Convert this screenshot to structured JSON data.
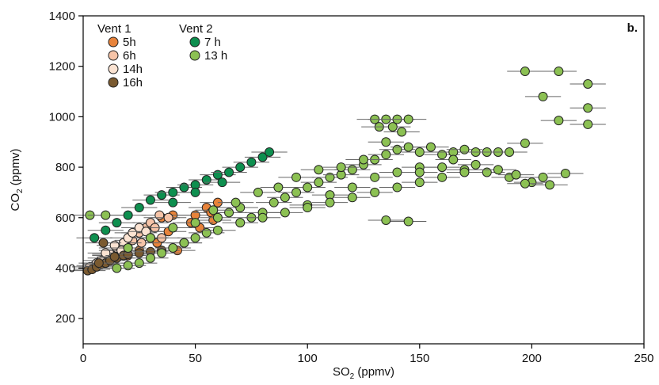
{
  "chart_data": {
    "type": "scatter",
    "panel_label": "b.",
    "xlabel_main": "SO",
    "xlabel_sub": "2",
    "xlabel_unit": " (ppmv)",
    "ylabel_main": "CO",
    "ylabel_sub": "2",
    "ylabel_unit": " (ppmv)",
    "xlim": [
      0,
      250
    ],
    "ylim": [
      100,
      1400
    ],
    "x_ticks": [
      0,
      50,
      100,
      150,
      200,
      250
    ],
    "x_tick_labels": [
      "0",
      "50",
      "100",
      "150",
      "200",
      "250"
    ],
    "y_ticks": [
      200,
      400,
      600,
      800,
      1000,
      1200,
      1400
    ],
    "y_tick_labels": [
      "200",
      "400",
      "600",
      "800",
      "1000",
      "1200",
      "1400"
    ],
    "grid": false,
    "error_bars": true,
    "legend": {
      "placement": "top-left",
      "groups": [
        {
          "title": "Vent 1",
          "entries": [
            "5h",
            "6h",
            "14h",
            "16h"
          ]
        },
        {
          "title": "Vent 2",
          "entries": [
            "7 h",
            "13 h"
          ]
        }
      ]
    },
    "series": [
      {
        "name": "5h",
        "color": "#e8833a",
        "points": [
          [
            45,
            500
          ],
          [
            42,
            470
          ],
          [
            38,
            545
          ],
          [
            48,
            580
          ],
          [
            50,
            610
          ],
          [
            52,
            560
          ],
          [
            55,
            640
          ],
          [
            57,
            620
          ],
          [
            60,
            660
          ],
          [
            30,
            520
          ],
          [
            33,
            500
          ],
          [
            25,
            470
          ],
          [
            20,
            450
          ],
          [
            35,
            600
          ],
          [
            40,
            610
          ],
          [
            58,
            590
          ]
        ]
      },
      {
        "name": "6h",
        "color": "#f6c4a8",
        "points": [
          [
            10,
            440
          ],
          [
            15,
            470
          ],
          [
            18,
            500
          ],
          [
            22,
            510
          ],
          [
            25,
            540
          ],
          [
            28,
            560
          ],
          [
            30,
            580
          ],
          [
            32,
            560
          ],
          [
            35,
            520
          ],
          [
            20,
            480
          ],
          [
            12,
            450
          ],
          [
            8,
            420
          ],
          [
            26,
            500
          ],
          [
            34,
            610
          ],
          [
            38,
            600
          ]
        ]
      },
      {
        "name": "14h",
        "color": "#fbe3d2",
        "points": [
          [
            5,
            410
          ],
          [
            8,
            430
          ],
          [
            12,
            455
          ],
          [
            15,
            480
          ],
          [
            18,
            500
          ],
          [
            20,
            520
          ],
          [
            22,
            540
          ],
          [
            25,
            560
          ],
          [
            28,
            545
          ],
          [
            10,
            460
          ],
          [
            14,
            490
          ],
          [
            17,
            470
          ],
          [
            3,
            405
          ],
          [
            6,
            420
          ]
        ]
      },
      {
        "name": "16h",
        "color": "#7a5a30",
        "points": [
          [
            2,
            390
          ],
          [
            4,
            395
          ],
          [
            6,
            405
          ],
          [
            8,
            415
          ],
          [
            10,
            420
          ],
          [
            12,
            430
          ],
          [
            15,
            440
          ],
          [
            18,
            450
          ],
          [
            20,
            455
          ],
          [
            25,
            460
          ],
          [
            30,
            465
          ],
          [
            35,
            470
          ],
          [
            7,
            420
          ],
          [
            9,
            500
          ],
          [
            14,
            445
          ]
        ]
      },
      {
        "name": "7 h",
        "color": "#0e8f4f",
        "points": [
          [
            15,
            580
          ],
          [
            20,
            610
          ],
          [
            25,
            640
          ],
          [
            30,
            670
          ],
          [
            35,
            690
          ],
          [
            40,
            700
          ],
          [
            45,
            720
          ],
          [
            50,
            730
          ],
          [
            55,
            750
          ],
          [
            60,
            770
          ],
          [
            65,
            780
          ],
          [
            70,
            800
          ],
          [
            75,
            820
          ],
          [
            80,
            840
          ],
          [
            83,
            860
          ],
          [
            10,
            550
          ],
          [
            5,
            520
          ],
          [
            50,
            700
          ],
          [
            40,
            660
          ],
          [
            62,
            740
          ]
        ]
      },
      {
        "name": "13 h",
        "color": "#8cc153",
        "points": [
          [
            3,
            610
          ],
          [
            10,
            610
          ],
          [
            20,
            480
          ],
          [
            30,
            520
          ],
          [
            40,
            560
          ],
          [
            50,
            580
          ],
          [
            55,
            540
          ],
          [
            60,
            600
          ],
          [
            65,
            620
          ],
          [
            70,
            640
          ],
          [
            75,
            600
          ],
          [
            80,
            620
          ],
          [
            85,
            660
          ],
          [
            90,
            680
          ],
          [
            95,
            700
          ],
          [
            100,
            720
          ],
          [
            105,
            740
          ],
          [
            110,
            760
          ],
          [
            115,
            770
          ],
          [
            120,
            790
          ],
          [
            125,
            810
          ],
          [
            130,
            830
          ],
          [
            135,
            850
          ],
          [
            140,
            870
          ],
          [
            145,
            880
          ],
          [
            150,
            860
          ],
          [
            155,
            880
          ],
          [
            160,
            850
          ],
          [
            165,
            860
          ],
          [
            170,
            870
          ],
          [
            175,
            860
          ],
          [
            180,
            860
          ],
          [
            185,
            860
          ],
          [
            190,
            860
          ],
          [
            100,
            650
          ],
          [
            110,
            690
          ],
          [
            120,
            720
          ],
          [
            130,
            760
          ],
          [
            140,
            780
          ],
          [
            150,
            800
          ],
          [
            160,
            800
          ],
          [
            170,
            790
          ],
          [
            180,
            780
          ],
          [
            190,
            760
          ],
          [
            200,
            740
          ],
          [
            208,
            730
          ],
          [
            130,
            990
          ],
          [
            135,
            990
          ],
          [
            140,
            990
          ],
          [
            145,
            990
          ],
          [
            132,
            960
          ],
          [
            138,
            960
          ],
          [
            142,
            940
          ],
          [
            135,
            590
          ],
          [
            145,
            585
          ],
          [
            197,
            1180
          ],
          [
            212,
            1180
          ],
          [
            225,
            1130
          ],
          [
            205,
            1080
          ],
          [
            225,
            1035
          ],
          [
            212,
            985
          ],
          [
            225,
            970
          ],
          [
            197,
            895
          ],
          [
            215,
            775
          ],
          [
            205,
            760
          ],
          [
            197,
            735
          ],
          [
            60,
            550
          ],
          [
            70,
            580
          ],
          [
            80,
            600
          ],
          [
            90,
            620
          ],
          [
            100,
            640
          ],
          [
            110,
            660
          ],
          [
            120,
            680
          ],
          [
            130,
            700
          ],
          [
            140,
            720
          ],
          [
            150,
            740
          ],
          [
            160,
            760
          ],
          [
            170,
            780
          ],
          [
            50,
            520
          ],
          [
            45,
            500
          ],
          [
            40,
            480
          ],
          [
            35,
            460
          ],
          [
            30,
            440
          ],
          [
            25,
            420
          ],
          [
            20,
            410
          ],
          [
            15,
            400
          ],
          [
            95,
            760
          ],
          [
            105,
            790
          ],
          [
            115,
            800
          ],
          [
            125,
            830
          ],
          [
            135,
            900
          ],
          [
            150,
            780
          ],
          [
            165,
            830
          ],
          [
            175,
            810
          ],
          [
            185,
            790
          ],
          [
            193,
            770
          ],
          [
            87,
            720
          ],
          [
            78,
            700
          ],
          [
            68,
            660
          ],
          [
            58,
            630
          ]
        ]
      }
    ]
  }
}
